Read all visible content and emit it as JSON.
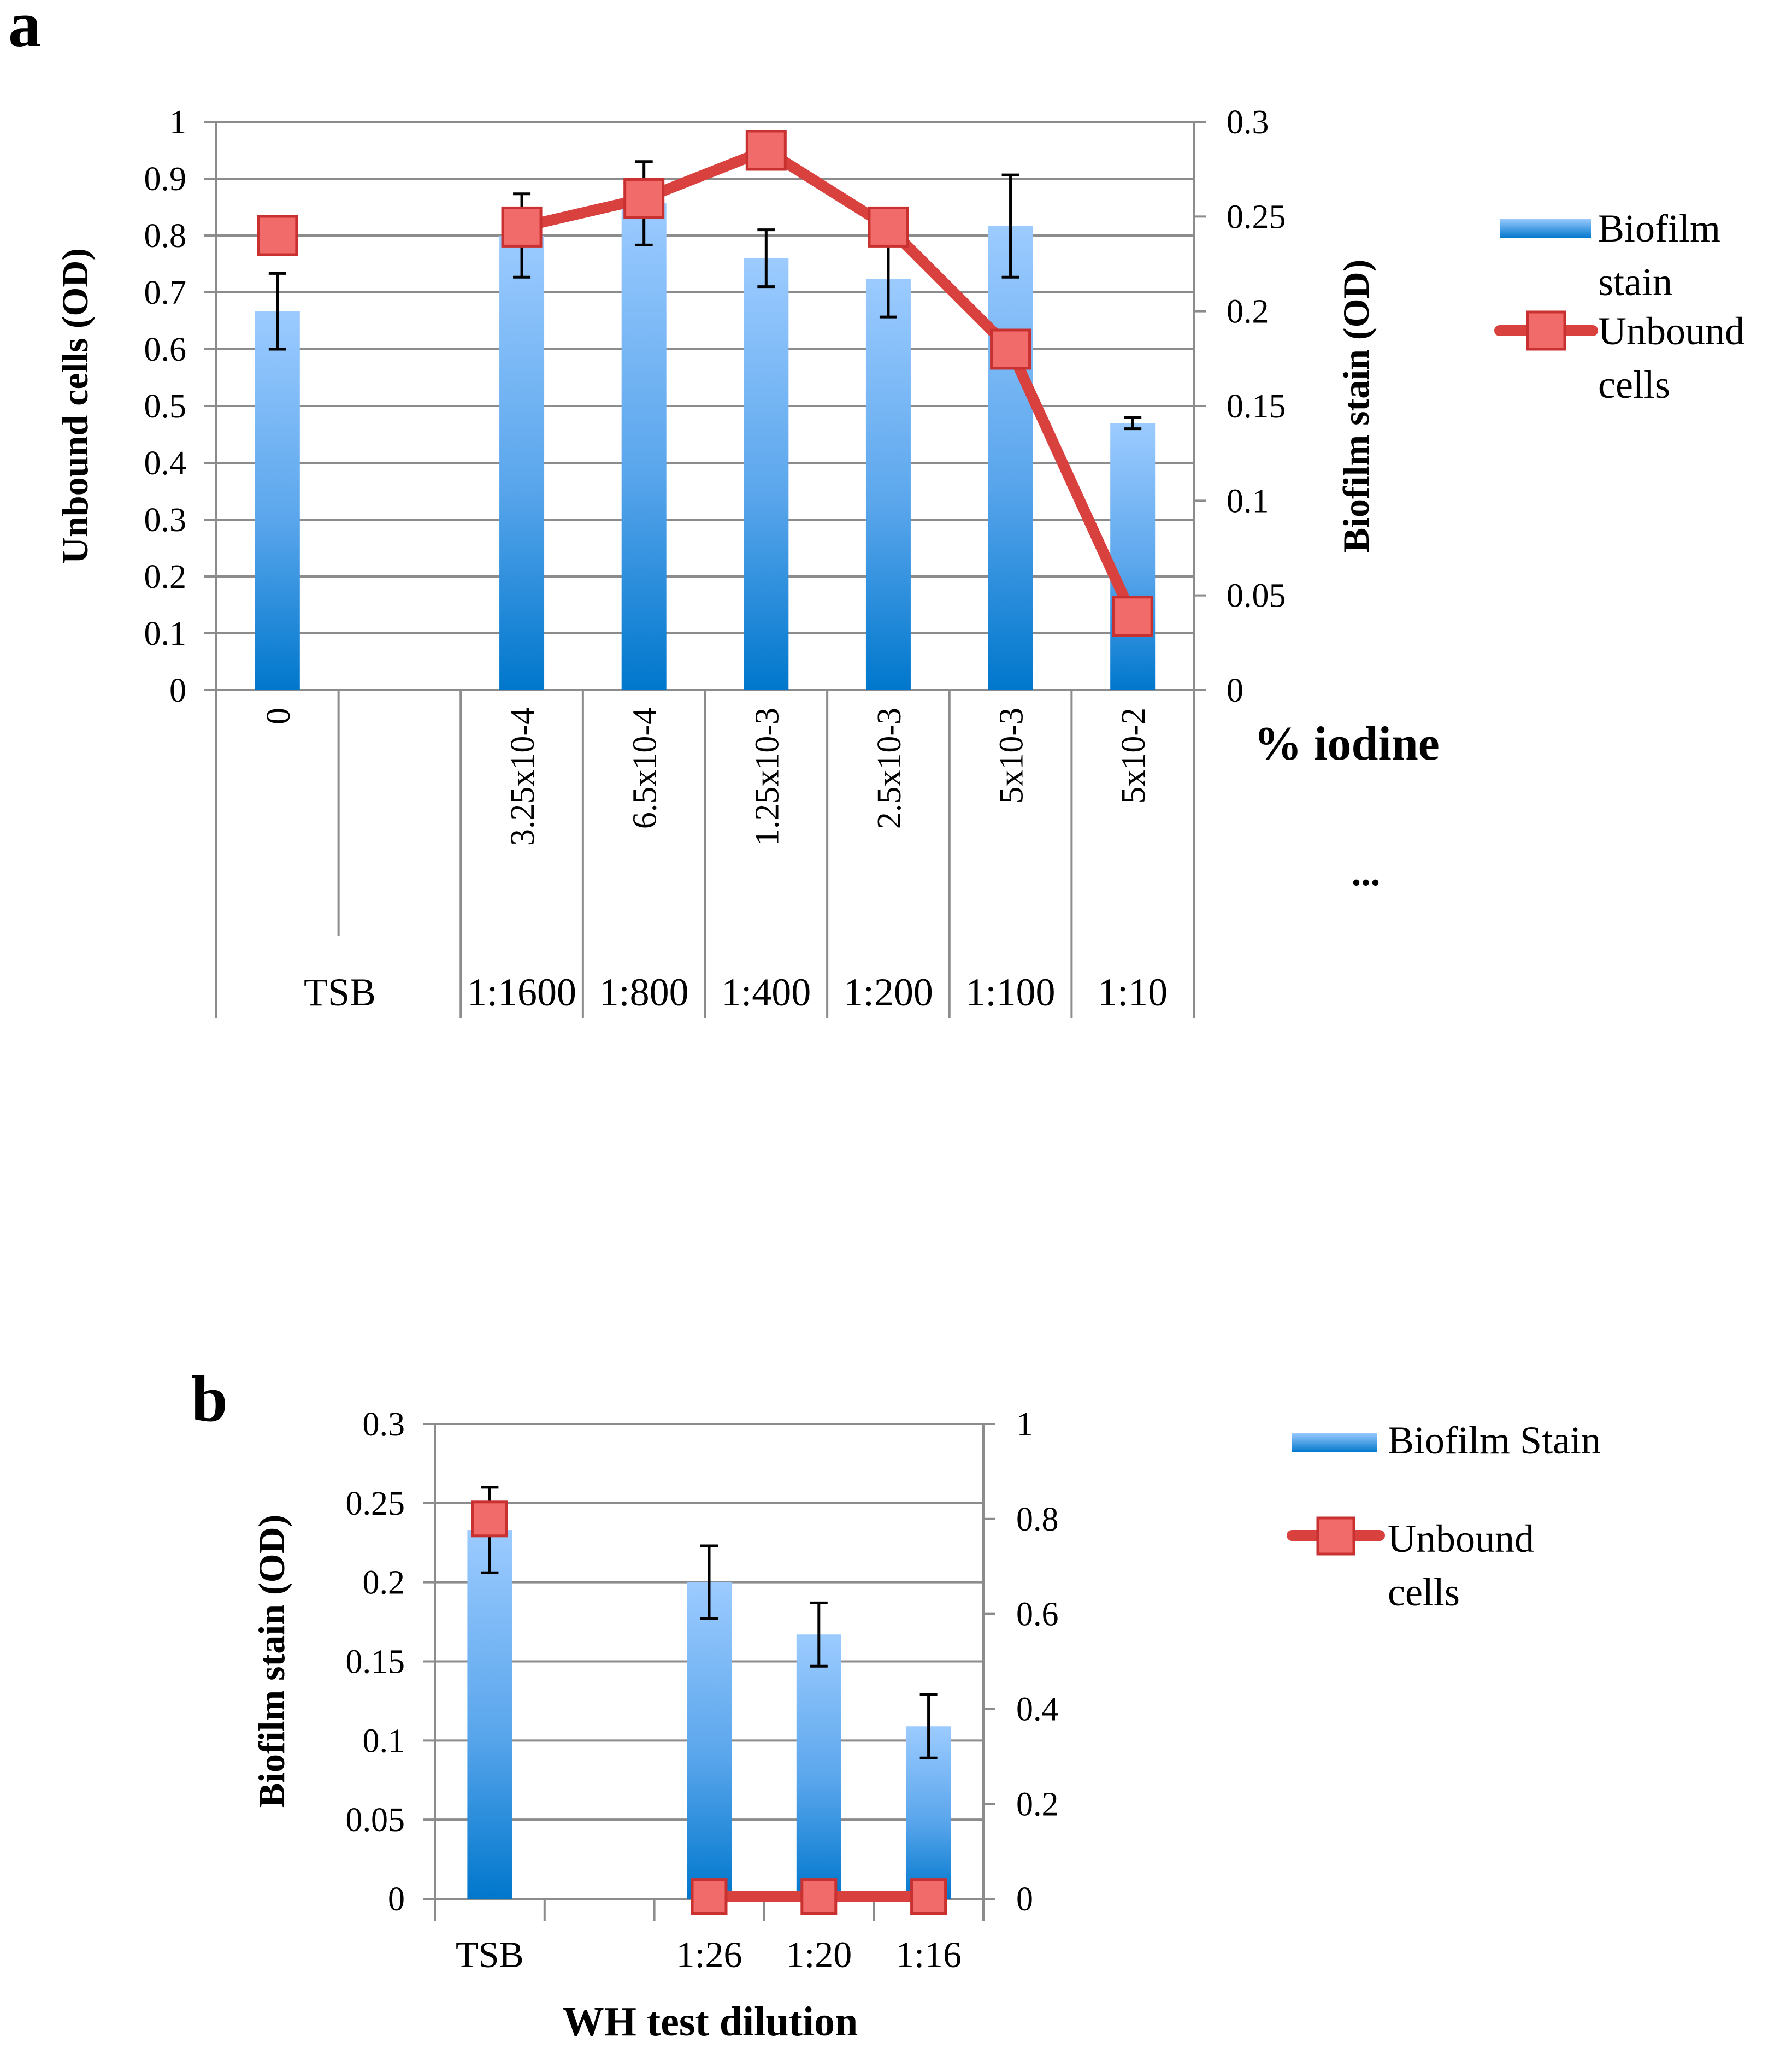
{
  "colors": {
    "bar_top": "#9ccbff",
    "bar_bottom": "#0077cc",
    "line": "#d9413f",
    "marker_fill": "#f26b6b",
    "marker_stroke": "#c8312f",
    "grid": "#8c8c8c",
    "axis": "#8c8c8c",
    "error": "#000000"
  },
  "chart_data": [
    {
      "panel_label": "a",
      "type": "bar+line",
      "left_axis": {
        "label": "Unbound cells (OD)",
        "range": [
          0,
          1
        ],
        "ticks": [
          "0",
          "0.1",
          "0.2",
          "0.3",
          "0.4",
          "0.5",
          "0.6",
          "0.7",
          "0.8",
          "0.9",
          "1"
        ]
      },
      "right_axis": {
        "label": "Biofilm stain (OD)",
        "range": [
          0,
          0.3
        ],
        "ticks": [
          "0",
          "0.05",
          "0.1",
          "0.15",
          "0.2",
          "0.25",
          "0.3"
        ]
      },
      "x_axis_title": "% iodine",
      "x_axis_note": "...",
      "iodine_labels": [
        "0",
        "",
        "3.25x10-4",
        "6.5x10-4",
        "1.25x10-3",
        "2.5x10-3",
        "5x10-3",
        "5x10-2"
      ],
      "dilution_labels": [
        "TSB",
        "",
        "1:1600",
        "1:800",
        "1:400",
        "1:200",
        "1:100",
        "1:10"
      ],
      "series": [
        {
          "name": "Biofilm stain",
          "kind": "bar",
          "axis": "right",
          "values": [
            0.2,
            null,
            0.24,
            0.257,
            0.228,
            0.217,
            0.245,
            0.141
          ],
          "errors": [
            0.02,
            null,
            0.022,
            0.022,
            0.015,
            0.02,
            0.027,
            0.003
          ]
        },
        {
          "name": "Unbound cells",
          "kind": "line",
          "axis": "left",
          "values": [
            0.8,
            null,
            0.815,
            0.865,
            0.95,
            0.815,
            0.6,
            0.13
          ]
        }
      ],
      "legend": [
        "Biofilm stain",
        "Unbound cells"
      ],
      "legend_lines": [
        [
          "Biofilm",
          "stain"
        ],
        [
          "Unbound",
          "cells"
        ]
      ],
      "grid": true,
      "legend_position": "right"
    },
    {
      "panel_label": "b",
      "type": "bar+line",
      "left_axis": {
        "label": "Biofilm stain (OD)",
        "range": [
          0,
          0.3
        ],
        "ticks": [
          "0",
          "0.05",
          "0.1",
          "0.15",
          "0.2",
          "0.25",
          "0.3"
        ]
      },
      "right_axis": {
        "label": "",
        "range": [
          0,
          1
        ],
        "ticks": [
          "0",
          "0.2",
          "0.4",
          "0.6",
          "0.8",
          "1"
        ]
      },
      "x_axis_title": "WH  test dilution",
      "categories": [
        "TSB",
        "",
        "1:26",
        "1:20",
        "1:16"
      ],
      "series": [
        {
          "name": "Biofilm Stain",
          "kind": "bar",
          "axis": "left",
          "values": [
            0.233,
            null,
            0.2,
            0.167,
            0.109
          ],
          "errors": [
            0.027,
            null,
            0.023,
            0.02,
            0.02
          ]
        },
        {
          "name": "Unbound cells",
          "kind": "line",
          "axis": "right",
          "values": [
            0.8,
            null,
            0.005,
            0.005,
            0.005
          ]
        }
      ],
      "legend": [
        "Biofilm Stain",
        "Unbound cells"
      ],
      "legend_lines": [
        [
          "Biofilm Stain"
        ],
        [
          "Unbound",
          "cells"
        ]
      ],
      "grid": true,
      "legend_position": "right"
    }
  ]
}
